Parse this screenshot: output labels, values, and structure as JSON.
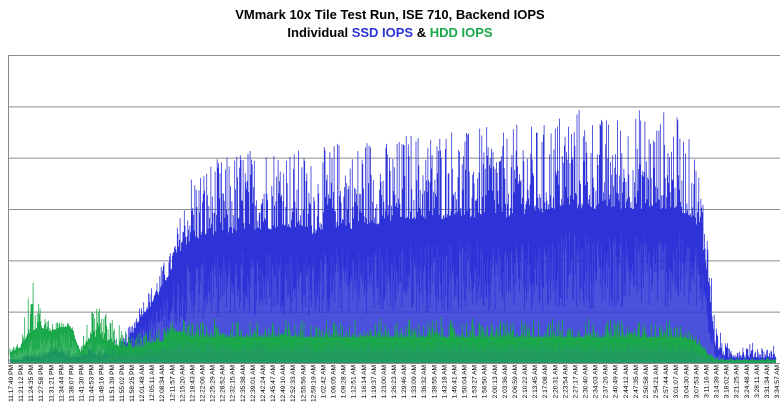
{
  "title": "VMmark 10x Tile Test Run, ISE 710, Backend IOPS",
  "subtitle": {
    "prefix": "Individual",
    "ssd_label": "SSD IOPS",
    "joiner": "&",
    "hdd_label": "HDD IOPS"
  },
  "colors": {
    "ssd": "#2d33d6",
    "hdd": "#1aa84a",
    "grid": "#8c8c8c"
  },
  "chart_data": {
    "type": "area",
    "title": "VMmark 10x Tile Test Run, ISE 710, Backend IOPS",
    "subtitle": "Individual SSD IOPS & HDD IOPS",
    "grid": true,
    "y_tick_labels_shown": false,
    "x_tick_labels": [
      "11:17:49 PM",
      "11:21:12 PM",
      "11:24:35 PM",
      "11:27:58 PM",
      "11:31:21 PM",
      "11:34:44 PM",
      "11:38:07 PM",
      "11:41:30 PM",
      "11:44:53 PM",
      "11:48:16 PM",
      "11:51:39 PM",
      "11:55:02 PM",
      "11:58:25 PM",
      "12:01:48 AM",
      "12:05:11 AM",
      "12:08:34 AM",
      "12:11:57 AM",
      "12:15:20 AM",
      "12:18:43 AM",
      "12:22:06 AM",
      "12:25:29 AM",
      "12:28:52 AM",
      "12:32:15 AM",
      "12:35:38 AM",
      "12:39:01 AM",
      "12:42:24 AM",
      "12:45:47 AM",
      "12:49:10 AM",
      "12:52:33 AM",
      "12:55:56 AM",
      "12:59:19 AM",
      "1:02:42 AM",
      "1:06:05 AM",
      "1:09:28 AM",
      "1:12:51 AM",
      "1:16:14 AM",
      "1:19:37 AM",
      "1:23:00 AM",
      "1:26:23 AM",
      "1:29:46 AM",
      "1:33:09 AM",
      "1:36:32 AM",
      "1:39:55 AM",
      "1:43:18 AM",
      "1:46:41 AM",
      "1:50:04 AM",
      "1:53:27 AM",
      "1:56:50 AM",
      "2:00:13 AM",
      "2:03:36 AM",
      "2:06:59 AM",
      "2:10:22 AM",
      "2:13:45 AM",
      "2:17:08 AM",
      "2:20:31 AM",
      "2:23:54 AM",
      "2:27:17 AM",
      "2:30:40 AM",
      "2:34:03 AM",
      "2:37:26 AM",
      "2:40:49 AM",
      "2:44:12 AM",
      "2:47:35 AM",
      "2:50:58 AM",
      "2:54:21 AM",
      "2:57:44 AM",
      "3:01:07 AM",
      "3:04:30 AM",
      "3:07:53 AM",
      "3:11:16 AM",
      "3:14:39 AM",
      "3:18:02 AM",
      "3:21:25 AM",
      "3:24:48 AM",
      "3:28:11 AM",
      "3:31:34 AM",
      "3:34:57 AM"
    ],
    "y_relative_range": [
      0,
      6
    ],
    "y_unit_note": "values are in gridline units (6 gridlines, no numeric labels printed)",
    "series": [
      {
        "name": "SSD IOPS",
        "x_index": [
          0,
          1,
          2,
          3,
          4,
          5,
          6,
          7,
          8,
          9,
          10,
          11,
          12,
          13,
          14,
          15,
          16,
          17,
          18,
          19,
          20,
          21,
          22,
          23,
          24,
          25,
          26,
          27,
          28,
          29,
          30,
          31,
          32,
          33,
          34,
          35,
          36,
          37,
          38,
          39,
          40,
          41,
          42,
          43,
          44,
          45,
          46,
          47,
          48,
          49,
          50,
          51,
          52,
          53,
          54,
          55,
          56,
          57,
          58,
          59,
          60,
          61,
          62,
          63,
          64,
          65,
          66,
          67,
          68,
          69,
          70,
          71,
          72,
          73,
          74,
          75,
          76
        ],
        "peak": [
          0.1,
          0.1,
          0.3,
          0.2,
          0.4,
          0.4,
          0.3,
          0.2,
          0.4,
          0.3,
          0.5,
          0.4,
          0.8,
          1.2,
          1.5,
          1.9,
          2.2,
          3.0,
          3.8,
          3.9,
          4.0,
          4.0,
          4.1,
          4.3,
          4.2,
          4.4,
          4.3,
          4.5,
          4.2,
          4.2,
          4.0,
          4.2,
          4.3,
          4.5,
          4.2,
          4.5,
          4.5,
          4.4,
          4.3,
          4.5,
          4.6,
          4.5,
          4.6,
          4.7,
          4.7,
          4.5,
          4.6,
          4.6,
          4.6,
          4.5,
          4.6,
          4.8,
          4.6,
          4.7,
          4.9,
          5.0,
          5.1,
          5.0,
          4.9,
          4.8,
          4.9,
          4.9,
          5.0,
          5.0,
          4.8,
          5.0,
          4.9,
          4.5,
          4.2,
          3.2,
          0.8,
          0.4,
          0.4,
          0.4,
          0.4,
          0.3,
          0.4
        ],
        "typical": [
          0.05,
          0.05,
          0.1,
          0.1,
          0.2,
          0.2,
          0.1,
          0.1,
          0.2,
          0.1,
          0.3,
          0.2,
          0.5,
          0.9,
          1.1,
          1.4,
          1.8,
          2.2,
          2.4,
          2.4,
          2.5,
          2.5,
          2.5,
          2.6,
          2.6,
          2.6,
          2.6,
          2.7,
          2.6,
          2.6,
          2.5,
          2.6,
          2.6,
          2.7,
          2.6,
          2.7,
          2.7,
          2.7,
          2.7,
          2.8,
          2.8,
          2.8,
          2.8,
          2.8,
          2.9,
          2.8,
          2.8,
          2.9,
          2.9,
          2.8,
          2.9,
          2.9,
          2.9,
          2.9,
          3.0,
          3.0,
          3.0,
          3.0,
          3.0,
          3.0,
          3.0,
          3.0,
          3.0,
          3.0,
          3.0,
          3.0,
          3.0,
          2.9,
          2.8,
          2.0,
          0.3,
          0.1,
          0.1,
          0.1,
          0.1,
          0.1,
          0.1
        ]
      },
      {
        "name": "HDD IOPS",
        "x_index": [
          0,
          1,
          2,
          3,
          4,
          5,
          6,
          7,
          8,
          9,
          10,
          11,
          12,
          13,
          14,
          15,
          16,
          17,
          18,
          19,
          20,
          21,
          22,
          23,
          24,
          25,
          26,
          27,
          28,
          29,
          30,
          31,
          32,
          33,
          34,
          35,
          36,
          37,
          38,
          39,
          40,
          41,
          42,
          43,
          44,
          45,
          46,
          47,
          48,
          49,
          50,
          51,
          52,
          53,
          54,
          55,
          56,
          57,
          58,
          59,
          60,
          61,
          62,
          63,
          64,
          65,
          66,
          67,
          68,
          69,
          70,
          71,
          72,
          73,
          74,
          75,
          76
        ],
        "peak": [
          0.3,
          0.4,
          1.8,
          1.1,
          0.8,
          0.8,
          0.8,
          0.6,
          1.0,
          1.1,
          0.9,
          0.8,
          0.6,
          0.6,
          0.7,
          0.7,
          0.8,
          0.9,
          0.8,
          0.8,
          0.9,
          0.8,
          0.8,
          0.9,
          0.8,
          0.9,
          0.8,
          0.9,
          0.8,
          0.9,
          0.8,
          0.8,
          0.9,
          0.8,
          0.9,
          0.9,
          0.8,
          0.9,
          0.8,
          0.9,
          0.9,
          0.8,
          0.9,
          0.9,
          0.8,
          0.9,
          0.9,
          0.8,
          0.9,
          0.8,
          0.9,
          0.9,
          0.9,
          0.8,
          0.9,
          0.9,
          0.8,
          0.9,
          0.9,
          0.8,
          0.9,
          0.8,
          0.9,
          0.8,
          0.8,
          0.9,
          0.8,
          0.7,
          0.6,
          0.3,
          0.1,
          0.1,
          0.1,
          0.1,
          0.1,
          0.1,
          0.1
        ],
        "typical": [
          0.2,
          0.3,
          0.6,
          0.7,
          0.6,
          0.7,
          0.7,
          0.2,
          0.5,
          0.5,
          0.4,
          0.3,
          0.3,
          0.3,
          0.4,
          0.4,
          0.6,
          0.6,
          0.5,
          0.5,
          0.5,
          0.5,
          0.5,
          0.5,
          0.5,
          0.5,
          0.5,
          0.5,
          0.5,
          0.5,
          0.5,
          0.5,
          0.5,
          0.5,
          0.5,
          0.5,
          0.5,
          0.5,
          0.5,
          0.5,
          0.5,
          0.5,
          0.5,
          0.5,
          0.5,
          0.5,
          0.5,
          0.5,
          0.5,
          0.5,
          0.5,
          0.5,
          0.5,
          0.5,
          0.5,
          0.5,
          0.5,
          0.5,
          0.5,
          0.5,
          0.5,
          0.5,
          0.5,
          0.5,
          0.5,
          0.5,
          0.5,
          0.5,
          0.4,
          0.2,
          0.05,
          0.05,
          0.05,
          0.05,
          0.05,
          0.05,
          0.05
        ]
      }
    ]
  }
}
